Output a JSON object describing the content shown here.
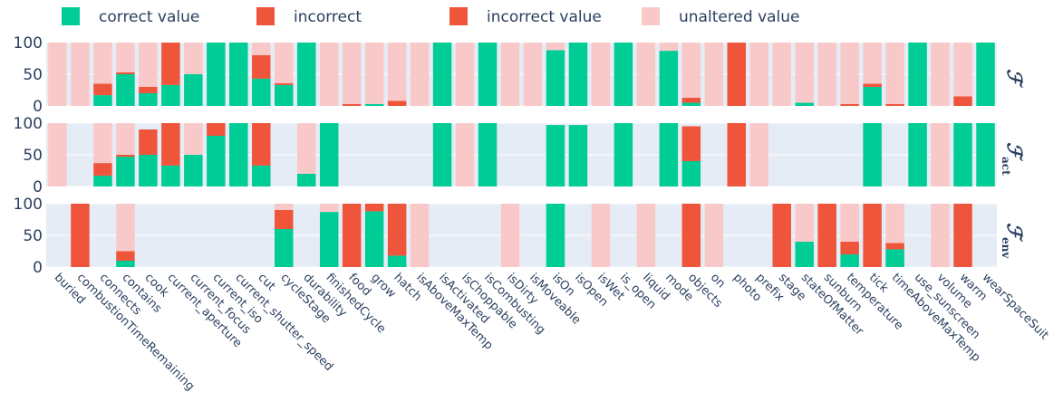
{
  "chart_data": {
    "type": "bar",
    "stacked": true,
    "legend": [
      {
        "name": "correct value",
        "color": "#00cc96"
      },
      {
        "name": "incorrect",
        "color": "#ef553b"
      },
      {
        "name": "incorrect value",
        "color": "#ef553b"
      },
      {
        "name": "unaltered value",
        "color": "#f9c9c9"
      }
    ],
    "legend_position": "top",
    "categories": [
      "buried",
      "combustionTimeRemaining",
      "connects",
      "contains",
      "cook",
      "current_aperture",
      "current_focus",
      "current_iso",
      "current_shutter_speed",
      "cut",
      "cycleStage",
      "durability",
      "finishedCycle",
      "food",
      "grow",
      "hatch",
      "isAboveMaxTemp",
      "isActivated",
      "isChoppable",
      "isCombusting",
      "isDirty",
      "isMoveable",
      "isOn",
      "isOpen",
      "isWet",
      "is_open",
      "liquid",
      "mode",
      "objects",
      "on",
      "photo",
      "prefix",
      "stage",
      "stateOfMatter",
      "sunburn",
      "temperature",
      "tick",
      "timeAboveMaxTemp",
      "use_sunscreen",
      "volume",
      "warm",
      "wearSpaceSuit"
    ],
    "y_ticks": [
      "0",
      "50",
      "100"
    ],
    "ylim": [
      0,
      100
    ],
    "panels": [
      {
        "label": "ℱ",
        "subscript": "",
        "correct": [
          0,
          0,
          17,
          50,
          20,
          33,
          50,
          100,
          100,
          43,
          33,
          100,
          0,
          0,
          3,
          0,
          0,
          100,
          0,
          100,
          0,
          0,
          88,
          100,
          0,
          100,
          0,
          87,
          5,
          0,
          0,
          0,
          0,
          5,
          0,
          0,
          30,
          0,
          100,
          0,
          0,
          100
        ],
        "incorrect": [
          0,
          0,
          18,
          3,
          10,
          67,
          0,
          0,
          0,
          37,
          3,
          0,
          0,
          3,
          0,
          8,
          0,
          0,
          0,
          0,
          0,
          0,
          0,
          0,
          0,
          0,
          0,
          0,
          8,
          0,
          100,
          0,
          0,
          0,
          0,
          3,
          5,
          3,
          0,
          0,
          15,
          0
        ],
        "unaltered": [
          100,
          100,
          65,
          47,
          70,
          0,
          50,
          0,
          0,
          20,
          64,
          0,
          100,
          97,
          97,
          92,
          100,
          0,
          100,
          0,
          100,
          100,
          12,
          0,
          100,
          0,
          100,
          13,
          87,
          100,
          0,
          100,
          100,
          95,
          100,
          97,
          65,
          97,
          0,
          100,
          85,
          0
        ]
      },
      {
        "label": "ℱ",
        "subscript": "act",
        "correct": [
          0,
          0,
          17,
          47,
          50,
          33,
          50,
          80,
          100,
          33,
          0,
          20,
          100,
          0,
          0,
          0,
          0,
          100,
          0,
          100,
          0,
          0,
          97,
          97,
          0,
          100,
          0,
          100,
          40,
          0,
          0,
          0,
          0,
          0,
          0,
          0,
          100,
          0,
          100,
          0,
          100,
          100
        ],
        "incorrect": [
          0,
          0,
          20,
          3,
          40,
          67,
          0,
          20,
          0,
          67,
          0,
          0,
          0,
          0,
          0,
          0,
          0,
          0,
          0,
          0,
          0,
          0,
          0,
          0,
          0,
          0,
          0,
          0,
          55,
          0,
          100,
          0,
          0,
          0,
          0,
          0,
          0,
          0,
          0,
          0,
          0,
          0
        ],
        "unaltered": [
          100,
          0,
          63,
          50,
          0,
          0,
          50,
          0,
          0,
          0,
          0,
          80,
          0,
          0,
          0,
          0,
          0,
          0,
          100,
          0,
          0,
          0,
          0,
          0,
          0,
          0,
          0,
          0,
          0,
          0,
          0,
          100,
          0,
          0,
          0,
          0,
          0,
          0,
          0,
          100,
          0,
          0
        ]
      },
      {
        "label": "ℱ",
        "subscript": "env",
        "correct": [
          0,
          0,
          0,
          10,
          0,
          0,
          0,
          0,
          0,
          0,
          60,
          0,
          87,
          0,
          88,
          18,
          0,
          0,
          0,
          0,
          0,
          0,
          100,
          0,
          0,
          0,
          0,
          0,
          0,
          0,
          0,
          0,
          0,
          40,
          0,
          20,
          0,
          28,
          0,
          0,
          0,
          0
        ],
        "incorrect": [
          0,
          100,
          0,
          15,
          0,
          0,
          0,
          0,
          0,
          0,
          30,
          0,
          0,
          100,
          12,
          82,
          0,
          0,
          0,
          0,
          0,
          0,
          0,
          0,
          0,
          0,
          0,
          0,
          100,
          0,
          0,
          0,
          100,
          0,
          100,
          20,
          100,
          10,
          0,
          0,
          100,
          0
        ],
        "unaltered": [
          0,
          0,
          0,
          75,
          0,
          0,
          0,
          0,
          0,
          0,
          10,
          0,
          13,
          0,
          0,
          0,
          100,
          0,
          0,
          0,
          100,
          0,
          0,
          0,
          100,
          0,
          100,
          0,
          0,
          100,
          0,
          0,
          0,
          60,
          0,
          60,
          0,
          62,
          0,
          100,
          0,
          0
        ]
      }
    ],
    "grid": true
  }
}
